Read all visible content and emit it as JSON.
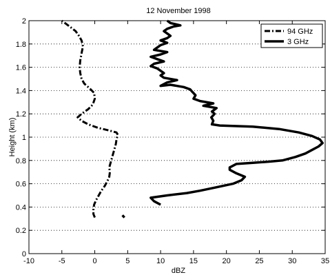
{
  "chart_data": {
    "type": "line",
    "title": "12 November 1998",
    "xlabel": "dBZ",
    "ylabel": "Height (km)",
    "xlim": [
      -10,
      35
    ],
    "ylim": [
      0,
      2
    ],
    "xticks": [
      -10,
      -5,
      0,
      5,
      10,
      15,
      20,
      25,
      30,
      35
    ],
    "yticks": [
      0,
      0.2,
      0.4,
      0.6,
      0.8,
      1,
      1.2,
      1.4,
      1.6,
      1.8,
      2
    ],
    "ytick_labels": [
      "0",
      "0.2",
      "0.4",
      "0.6",
      "0.8",
      "1",
      "1.2",
      "1.4",
      "1.6",
      "1.8",
      "2"
    ],
    "grid": "horizontal dotted",
    "legend_position": "top-right",
    "series": [
      {
        "name": "94 GHz",
        "style": "dash-dot",
        "color": "#000000",
        "points": [
          [
            0,
            0.31
          ],
          [
            -0.2,
            0.34
          ],
          [
            -0.2,
            0.38
          ],
          [
            -0.1,
            0.42
          ],
          [
            0.2,
            0.46
          ],
          [
            0.6,
            0.5
          ],
          [
            1.0,
            0.54
          ],
          [
            1.5,
            0.58
          ],
          [
            1.9,
            0.62
          ],
          [
            2.2,
            0.66
          ],
          [
            2.3,
            0.7
          ],
          [
            2.2,
            0.74
          ],
          [
            2.4,
            0.78
          ],
          [
            2.6,
            0.82
          ],
          [
            2.8,
            0.86
          ],
          [
            3.0,
            0.9
          ],
          [
            3.2,
            0.94
          ],
          [
            3.3,
            0.98
          ],
          [
            3.5,
            1.02
          ],
          [
            3.3,
            1.04
          ],
          [
            2.0,
            1.06
          ],
          [
            0.5,
            1.08
          ],
          [
            -1.0,
            1.11
          ],
          [
            -2.0,
            1.14
          ],
          [
            -2.6,
            1.17
          ],
          [
            -2.0,
            1.2
          ],
          [
            -1.0,
            1.24
          ],
          [
            -0.3,
            1.28
          ],
          [
            0,
            1.33
          ],
          [
            -0.1,
            1.38
          ],
          [
            -0.8,
            1.42
          ],
          [
            -1.6,
            1.46
          ],
          [
            -2.0,
            1.5
          ],
          [
            -2.2,
            1.55
          ],
          [
            -2.3,
            1.6
          ],
          [
            -2.2,
            1.66
          ],
          [
            -2.0,
            1.72
          ],
          [
            -1.8,
            1.78
          ],
          [
            -2.0,
            1.83
          ],
          [
            -2.4,
            1.87
          ],
          [
            -2.9,
            1.91
          ],
          [
            -3.6,
            1.94
          ],
          [
            -4.3,
            1.97
          ],
          [
            -5.0,
            2.0
          ]
        ]
      },
      {
        "name": "3 GHz",
        "style": "solid",
        "color": "#000000",
        "segments": [
          [
            [
              4.5,
              0.31
            ],
            [
              4.2,
              0.33
            ]
          ],
          [
            [
              10.0,
              0.42
            ],
            [
              9.0,
              0.45
            ],
            [
              8.5,
              0.48
            ],
            [
              11.0,
              0.5
            ],
            [
              14.0,
              0.52
            ],
            [
              16.0,
              0.54
            ],
            [
              18.5,
              0.57
            ],
            [
              21.0,
              0.6
            ],
            [
              22.3,
              0.63
            ],
            [
              22.8,
              0.66
            ],
            [
              21.5,
              0.69
            ],
            [
              20.5,
              0.72
            ],
            [
              20.5,
              0.74
            ],
            [
              21.5,
              0.77
            ],
            [
              24.0,
              0.78
            ],
            [
              26.5,
              0.79
            ],
            [
              28.5,
              0.8
            ],
            [
              30.5,
              0.83
            ],
            [
              32.0,
              0.86
            ],
            [
              33.0,
              0.89
            ],
            [
              34.0,
              0.92
            ],
            [
              34.6,
              0.95
            ],
            [
              34.2,
              0.98
            ],
            [
              33.0,
              1.01
            ],
            [
              31.0,
              1.04
            ],
            [
              28.0,
              1.07
            ],
            [
              24.0,
              1.09
            ],
            [
              19.0,
              1.1
            ],
            [
              17.8,
              1.11
            ],
            [
              18.0,
              1.14
            ],
            [
              17.7,
              1.17
            ],
            [
              18.2,
              1.2
            ],
            [
              17.8,
              1.22
            ],
            [
              18.5,
              1.25
            ],
            [
              16.5,
              1.27
            ],
            [
              18.0,
              1.29
            ],
            [
              16.0,
              1.31
            ],
            [
              15.0,
              1.33
            ],
            [
              15.3,
              1.36
            ],
            [
              14.8,
              1.39
            ],
            [
              14.5,
              1.41
            ],
            [
              13.5,
              1.43
            ],
            [
              11.5,
              1.45
            ],
            [
              10.0,
              1.44
            ],
            [
              11.0,
              1.47
            ],
            [
              12.5,
              1.49
            ],
            [
              10.5,
              1.51
            ],
            [
              10.0,
              1.53
            ],
            [
              10.5,
              1.55
            ],
            [
              10.0,
              1.57
            ],
            [
              9.5,
              1.59
            ],
            [
              8.5,
              1.61
            ],
            [
              9.0,
              1.63
            ],
            [
              10.5,
              1.65
            ],
            [
              9.5,
              1.67
            ],
            [
              8.5,
              1.69
            ],
            [
              10.0,
              1.71
            ],
            [
              11.0,
              1.73
            ],
            [
              9.0,
              1.75
            ],
            [
              9.5,
              1.77
            ],
            [
              10.0,
              1.79
            ],
            [
              11.0,
              1.81
            ],
            [
              10.0,
              1.83
            ],
            [
              11.0,
              1.85
            ],
            [
              11.5,
              1.87
            ],
            [
              11.0,
              1.89
            ],
            [
              10.5,
              1.91
            ],
            [
              11.0,
              1.93
            ],
            [
              12.0,
              1.95
            ],
            [
              13.0,
              1.96
            ],
            [
              11.5,
              1.98
            ],
            [
              11.0,
              2.0
            ]
          ]
        ]
      }
    ]
  }
}
